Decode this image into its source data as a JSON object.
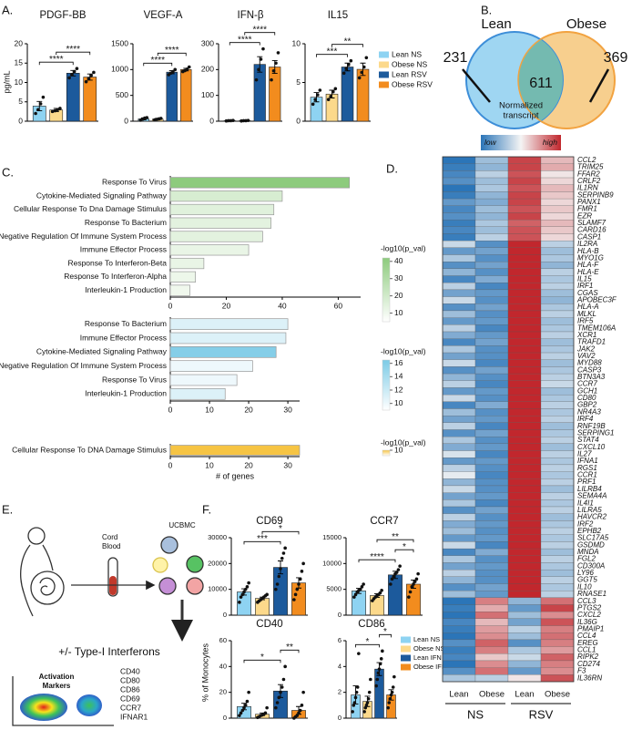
{
  "panels": [
    "A.",
    "B.",
    "C.",
    "D.",
    "E.",
    "F."
  ],
  "legend_a": [
    {
      "name": "Lean NS",
      "color": "#8ed3f2"
    },
    {
      "name": "Obese NS",
      "color": "#fcd98b"
    },
    {
      "name": "Lean RSV",
      "color": "#1c5a9c"
    },
    {
      "name": "Obese RSV",
      "color": "#f28c1e"
    }
  ],
  "legend_f": [
    {
      "name": "Lean NS",
      "color": "#8ed3f2"
    },
    {
      "name": "Obese NS",
      "color": "#fcd98b"
    },
    {
      "name": "Lean IFN",
      "color": "#1c5a9c"
    },
    {
      "name": "Obese IFN",
      "color": "#f28c1e"
    }
  ],
  "venn": {
    "sets": [
      "Lean",
      "Obese"
    ],
    "only_first": 231,
    "both": 611,
    "only_second": 369
  },
  "schematic": {
    "sample": [
      "Cord",
      "Blood"
    ],
    "cells": "UCBMC",
    "treatment": "+/- Type-I Interferons",
    "panel_title": [
      "Activation",
      "Markers"
    ],
    "markers": [
      "CD40",
      "CD80",
      "CD86",
      "CD69",
      "CCR7",
      "IFNAR1"
    ]
  },
  "chart_data": [
    {
      "type": "bar",
      "title": "PDGF-BB",
      "ylabel": "pg/mL",
      "ylim": [
        0,
        20
      ],
      "yticks": [
        0,
        5,
        10,
        15,
        20
      ],
      "values": [
        3.9,
        2.9,
        12.4,
        11.4
      ],
      "errors": [
        1.2,
        0.4,
        0.7,
        0.8
      ],
      "points": [
        [
          2,
          3,
          4.5,
          6.2
        ],
        [
          2.5,
          2.7,
          3,
          3.3
        ],
        [
          11.2,
          12,
          12.8,
          13.6
        ],
        [
          10.2,
          11,
          11.8,
          12.6
        ]
      ],
      "sig": [
        {
          "from": 0,
          "to": 2,
          "label": "****"
        },
        {
          "from": 1,
          "to": 3,
          "label": "****"
        }
      ]
    },
    {
      "type": "bar",
      "title": "VEGF-A",
      "ylim": [
        0,
        1500
      ],
      "yticks": [
        0,
        500,
        1000,
        1500
      ],
      "values": [
        45,
        40,
        950,
        1000
      ],
      "errors": [
        20,
        15,
        30,
        25
      ],
      "points": [
        [
          20,
          40,
          60,
          70
        ],
        [
          25,
          35,
          45,
          55
        ],
        [
          900,
          930,
          960,
          1000
        ],
        [
          960,
          980,
          1010,
          1050
        ]
      ],
      "sig": [
        {
          "from": 0,
          "to": 2,
          "label": "****"
        },
        {
          "from": 1,
          "to": 3,
          "label": "****"
        }
      ]
    },
    {
      "type": "bar",
      "title": "IFN-β",
      "ylim": [
        0,
        300
      ],
      "yticks": [
        0,
        100,
        200,
        300
      ],
      "values": [
        2,
        2,
        220,
        210
      ],
      "errors": [
        1,
        1,
        30,
        25
      ],
      "points": [
        [
          1,
          2,
          2,
          3
        ],
        [
          1,
          2,
          2,
          3
        ],
        [
          160,
          200,
          240,
          280
        ],
        [
          160,
          195,
          225,
          265
        ]
      ],
      "sig": [
        {
          "from": 0,
          "to": 2,
          "label": "****"
        },
        {
          "from": 1,
          "to": 3,
          "label": "****"
        }
      ]
    },
    {
      "type": "bar",
      "title": "IL15",
      "ylim": [
        0,
        10
      ],
      "yticks": [
        0,
        5,
        10
      ],
      "values": [
        3.1,
        3.5,
        7,
        6.7
      ],
      "errors": [
        0.6,
        0.5,
        0.5,
        0.8
      ],
      "points": [
        [
          2.2,
          2.8,
          3.4,
          4
        ],
        [
          2.8,
          3.2,
          3.8,
          4.2
        ],
        [
          6.2,
          6.8,
          7.3,
          7.8
        ],
        [
          5.6,
          6.3,
          7,
          8.2
        ]
      ],
      "sig": [
        {
          "from": 0,
          "to": 2,
          "label": "***"
        },
        {
          "from": 1,
          "to": 3,
          "label": "**"
        }
      ]
    },
    {
      "type": "hbar",
      "categories": [
        "Response To Virus",
        "Cytokine-Mediated Signaling Pathway",
        "Cellular Response To Dna Damage Stimulus",
        "Response To Bacterium",
        "Negative Regulation Of Immune System Process",
        "Immune Effector Process",
        "Response To Interferon-Beta",
        "Response To Interferon-Alpha",
        "Interleukin-1 Production"
      ],
      "values": [
        64,
        40,
        37,
        36,
        33,
        28,
        12,
        9,
        7
      ],
      "color_values": [
        42,
        18,
        15,
        14,
        14,
        12,
        12,
        11,
        10
      ],
      "xlim": [
        0,
        68
      ],
      "xticks": [
        0,
        20,
        40,
        60
      ],
      "clim": [
        5,
        42
      ],
      "cmap": [
        "#ffffff",
        "#8dcb7d"
      ],
      "colorbar": {
        "title": "-log10(p_val)",
        "ticks": [
          40,
          30,
          20,
          10
        ]
      }
    },
    {
      "type": "hbar",
      "categories": [
        "Response To Bacterium",
        "Immune Effector Process",
        "Cytokine-Mediated Signaling Pathway",
        "Negative Regulation Of Immune System Process",
        "Response To Virus",
        "Interleukin-1 Production"
      ],
      "values": [
        30,
        29.5,
        27,
        21,
        17,
        14
      ],
      "color_values": [
        11,
        11,
        16,
        10,
        10,
        11
      ],
      "xlim": [
        0,
        33
      ],
      "xticks": [
        0,
        10,
        20,
        30
      ],
      "clim": [
        9,
        16.5
      ],
      "cmap": [
        "#ffffff",
        "#7ccbe6"
      ],
      "colorbar": {
        "title": "-log10(p_val)",
        "ticks": [
          16,
          14,
          12,
          10
        ]
      }
    },
    {
      "type": "hbar",
      "categories": [
        "Cellular Response To DNA Damage Stimulus"
      ],
      "values": [
        33
      ],
      "color_values": [
        10
      ],
      "xlim": [
        0,
        33
      ],
      "xticks": [
        0,
        10,
        20,
        30
      ],
      "xlabel": "# of genes",
      "clim": [
        8,
        10
      ],
      "cmap": [
        "#ffffff",
        "#f6c443"
      ],
      "colorbar": {
        "title": "-log10(p_val)",
        "ticks": [
          10
        ]
      }
    },
    {
      "type": "heatmap",
      "colorbar": {
        "title": [
          "Normalized",
          "transcript"
        ],
        "low": "low",
        "high": "high"
      },
      "colors": [
        "#2b75b8",
        "#f4f4f4",
        "#c1272d"
      ],
      "columns": [
        "Lean",
        "Obese",
        "Lean",
        "Obese"
      ],
      "groups": [
        {
          "label": "NS",
          "columns": [
            0,
            1
          ]
        },
        {
          "label": "RSV",
          "columns": [
            2,
            3
          ]
        }
      ],
      "rows": [
        "CCL2",
        "TRIM25",
        "FFAR2",
        "CRLF2",
        "IL1RN",
        "SERPINB9",
        "PANX1",
        "FMR1",
        "EZR",
        "SLAMF7",
        "CARD16",
        "CASP1",
        "IL2RA",
        "HLA-B",
        "MYO1G",
        "HLA-F",
        "HLA-E",
        "IL15",
        "IRF1",
        "CGAS",
        "APOBEC3F",
        "HLA-A",
        "MLKL",
        "IRF5",
        "TMEM106A",
        "XCR1",
        "TRAFD1",
        "JAK2",
        "VAV2",
        "MYD88",
        "CASP3",
        "BTN3A3",
        "CCR7",
        "GCH1",
        "CD80",
        "GBP2",
        "NR4A3",
        "IRF4",
        "RNF19B",
        "SERPING1",
        "STAT4",
        "CXCL10",
        "IL27",
        "IFNA1",
        "RGS1",
        "CCR1",
        "PRF1",
        "LILRB4",
        "SEMA4A",
        "IL4I1",
        "LILRA5",
        "HAVCR2",
        "IRF2",
        "EPHB2",
        "SLC17A5",
        "GSDMD",
        "MNDA",
        "FGL2",
        "CD300A",
        "LY96",
        "GGT5",
        "IL10",
        "RNASE1",
        "CCL3",
        "PTGS2",
        "CXCL2",
        "IL36G",
        "PMAIP1",
        "CCL4",
        "EREG",
        "CCL1",
        "RIPK2",
        "CD274",
        "F3",
        "IL36RN"
      ],
      "values": [
        [
          -1.3,
          -0.5,
          1.3,
          0.5
        ],
        [
          -1.2,
          -0.6,
          1.3,
          0.6
        ],
        [
          -1.1,
          -0.3,
          1.2,
          0.2
        ],
        [
          -1.0,
          -0.5,
          1.3,
          0.3
        ],
        [
          -1.3,
          -0.4,
          1.2,
          0.5
        ],
        [
          -1.2,
          -0.6,
          1.3,
          0.4
        ],
        [
          -0.9,
          -0.7,
          1.3,
          0.3
        ],
        [
          -1.1,
          -0.5,
          1.2,
          0.4
        ],
        [
          -1.0,
          -0.6,
          1.3,
          0.3
        ],
        [
          -1.2,
          -0.4,
          1.1,
          0.5
        ],
        [
          -1.1,
          -0.5,
          1.2,
          0.4
        ],
        [
          -1.2,
          -0.3,
          1.2,
          0.3
        ],
        [
          -0.2,
          -1.0,
          1.5,
          -0.3
        ],
        [
          -0.9,
          -0.8,
          1.5,
          -0.5
        ],
        [
          -0.4,
          -1.0,
          1.5,
          -0.4
        ],
        [
          -1.0,
          -0.8,
          1.5,
          -0.6
        ],
        [
          -0.6,
          -1.0,
          1.5,
          -0.3
        ],
        [
          -1.1,
          -0.7,
          1.5,
          -0.4
        ],
        [
          -0.3,
          -1.1,
          1.5,
          -0.3
        ],
        [
          -0.8,
          -0.9,
          1.5,
          -0.5
        ],
        [
          -0.2,
          -1.0,
          1.5,
          -0.6
        ],
        [
          -1.0,
          -0.8,
          1.5,
          -0.4
        ],
        [
          -0.5,
          -1.0,
          1.5,
          -0.3
        ],
        [
          -0.9,
          -0.9,
          1.5,
          -0.5
        ],
        [
          -0.3,
          -1.1,
          1.5,
          -0.4
        ],
        [
          -0.7,
          -0.9,
          1.5,
          -0.3
        ],
        [
          -1.1,
          -0.8,
          1.5,
          -0.5
        ],
        [
          -0.4,
          -1.0,
          1.5,
          -0.4
        ],
        [
          -0.8,
          -1.0,
          1.5,
          -0.3
        ],
        [
          -0.2,
          -1.1,
          1.5,
          -0.5
        ],
        [
          -1.0,
          -0.8,
          1.5,
          -0.4
        ],
        [
          -0.6,
          -1.0,
          1.5,
          -0.3
        ],
        [
          -0.3,
          -1.1,
          1.5,
          -0.2
        ],
        [
          -0.9,
          -0.9,
          1.5,
          -0.5
        ],
        [
          -0.2,
          -1.0,
          1.5,
          -0.4
        ],
        [
          -1.1,
          -0.7,
          1.5,
          -0.3
        ],
        [
          -0.5,
          -1.0,
          1.5,
          -0.4
        ],
        [
          -0.8,
          -0.9,
          1.5,
          -0.3
        ],
        [
          -0.3,
          -1.1,
          1.5,
          -0.5
        ],
        [
          -1.0,
          -0.8,
          1.5,
          -0.4
        ],
        [
          -0.4,
          -1.0,
          1.5,
          -0.3
        ],
        [
          -0.7,
          -0.9,
          1.5,
          -0.5
        ],
        [
          -0.1,
          -1.1,
          1.5,
          -0.3
        ],
        [
          -0.9,
          -0.9,
          1.5,
          -0.4
        ],
        [
          -0.3,
          -1.0,
          1.5,
          -0.3
        ],
        [
          0.0,
          -1.1,
          1.5,
          -0.4
        ],
        [
          -0.6,
          -1.0,
          1.5,
          -0.3
        ],
        [
          -0.2,
          -1.0,
          1.5,
          -0.5
        ],
        [
          -0.8,
          -0.9,
          1.5,
          -0.3
        ],
        [
          -0.4,
          -1.1,
          1.5,
          -0.4
        ],
        [
          -1.0,
          -0.8,
          1.5,
          -0.3
        ],
        [
          -0.3,
          -1.0,
          1.5,
          -0.5
        ],
        [
          -0.7,
          -0.9,
          1.5,
          -0.4
        ],
        [
          -0.5,
          -1.0,
          1.5,
          -0.3
        ],
        [
          -0.9,
          -0.9,
          1.5,
          -0.4
        ],
        [
          -0.2,
          -1.1,
          1.5,
          -0.3
        ],
        [
          -1.1,
          -0.7,
          1.5,
          -0.5
        ],
        [
          -0.4,
          -1.0,
          1.5,
          -0.3
        ],
        [
          -0.8,
          -0.9,
          1.5,
          -0.4
        ],
        [
          -0.3,
          -1.0,
          1.5,
          -0.5
        ],
        [
          -0.6,
          -1.0,
          1.5,
          -0.3
        ],
        [
          -1.0,
          -0.8,
          1.5,
          -0.4
        ],
        [
          -0.5,
          -0.9,
          1.5,
          -0.3
        ],
        [
          -1.3,
          0.9,
          -0.6,
          1.0
        ],
        [
          -1.2,
          0.6,
          -0.9,
          1.3
        ],
        [
          -1.3,
          1.0,
          -0.5,
          0.8
        ],
        [
          -1.1,
          0.5,
          -0.8,
          1.2
        ],
        [
          -1.2,
          0.7,
          -0.3,
          0.9
        ],
        [
          -1.3,
          0.8,
          -0.5,
          1.0
        ],
        [
          -1.0,
          1.1,
          -1.0,
          0.9
        ],
        [
          -1.2,
          0.9,
          -0.4,
          0.7
        ],
        [
          -1.1,
          0.4,
          -0.2,
          1.1
        ],
        [
          -1.3,
          0.8,
          -0.6,
          0.9
        ],
        [
          -1.0,
          1.0,
          -0.9,
          0.8
        ],
        [
          -0.4,
          -0.3,
          0.2,
          1.2
        ]
      ]
    },
    {
      "type": "bar",
      "title": "CD69",
      "ylim": [
        0,
        30000
      ],
      "yticks": [
        0,
        10000,
        20000,
        30000
      ],
      "values": [
        9000,
        6500,
        18500,
        12500
      ],
      "errors": [
        1200,
        500,
        2500,
        2000
      ],
      "points": [
        [
          5000,
          7000,
          8000,
          9000,
          10000,
          11000,
          12500
        ],
        [
          5000,
          5500,
          6000,
          6500,
          7000,
          7500,
          8000
        ],
        [
          10000,
          12000,
          15000,
          18000,
          22000,
          24000,
          26000
        ],
        [
          6000,
          8000,
          10000,
          12000,
          14000,
          17000,
          20000
        ]
      ],
      "sig": [
        {
          "from": 0,
          "to": 2,
          "label": "***"
        },
        {
          "from": 1,
          "to": 3,
          "label": "*"
        }
      ]
    },
    {
      "type": "bar",
      "title": "CCR7",
      "ylim": [
        0,
        15000
      ],
      "yticks": [
        0,
        5000,
        10000,
        15000
      ],
      "values": [
        4700,
        3800,
        7800,
        6000
      ],
      "errors": [
        500,
        350,
        700,
        800
      ],
      "points": [
        [
          3500,
          4000,
          4500,
          4800,
          5000,
          5500,
          6000
        ],
        [
          2800,
          3200,
          3500,
          3800,
          4000,
          4300,
          4800
        ],
        [
          6000,
          7000,
          7500,
          8000,
          8300,
          8800,
          9500
        ],
        [
          3500,
          4500,
          5500,
          6000,
          6500,
          7000,
          8000
        ]
      ],
      "sig": [
        {
          "from": 0,
          "to": 2,
          "label": "****"
        },
        {
          "from": 2,
          "to": 3,
          "label": "*"
        },
        {
          "from": 1,
          "to": 3,
          "label": "**"
        }
      ]
    },
    {
      "type": "bar",
      "title": "CD40",
      "ylabel": "% of Monocytes",
      "ylim": [
        0,
        60
      ],
      "yticks": [
        0,
        20,
        40,
        60
      ],
      "values": [
        9,
        3,
        21,
        6
      ],
      "errors": [
        2.5,
        1,
        5,
        3
      ],
      "points": [
        [
          2,
          4,
          6,
          8,
          10,
          13,
          20
        ],
        [
          0.5,
          1,
          2,
          2.5,
          3,
          4,
          8
        ],
        [
          8,
          12,
          16,
          20,
          24,
          30,
          40
        ],
        [
          0,
          1,
          2,
          4,
          6,
          10,
          20
        ]
      ],
      "sig": [
        {
          "from": 0,
          "to": 2,
          "label": "*"
        },
        {
          "from": 2,
          "to": 3,
          "label": "**"
        }
      ]
    },
    {
      "type": "bar",
      "title": "CD86",
      "ylim": [
        0,
        6
      ],
      "yticks": [
        0,
        2,
        4,
        6
      ],
      "values": [
        1.8,
        1.3,
        3.8,
        1.8
      ],
      "errors": [
        0.7,
        0.4,
        0.5,
        0.4
      ],
      "points": [
        [
          0.5,
          1,
          1.2,
          1.6,
          2,
          2.4,
          5
        ],
        [
          0.5,
          0.8,
          1,
          1.2,
          1.5,
          2,
          3
        ],
        [
          2.5,
          3,
          3.5,
          3.8,
          4.2,
          4.6,
          5.2
        ],
        [
          0.8,
          1.2,
          1.5,
          1.8,
          2,
          2.4,
          3.2
        ]
      ],
      "sig": [
        {
          "from": 0,
          "to": 2,
          "label": "*"
        },
        {
          "from": 2,
          "to": 3,
          "label": "*"
        }
      ]
    }
  ]
}
